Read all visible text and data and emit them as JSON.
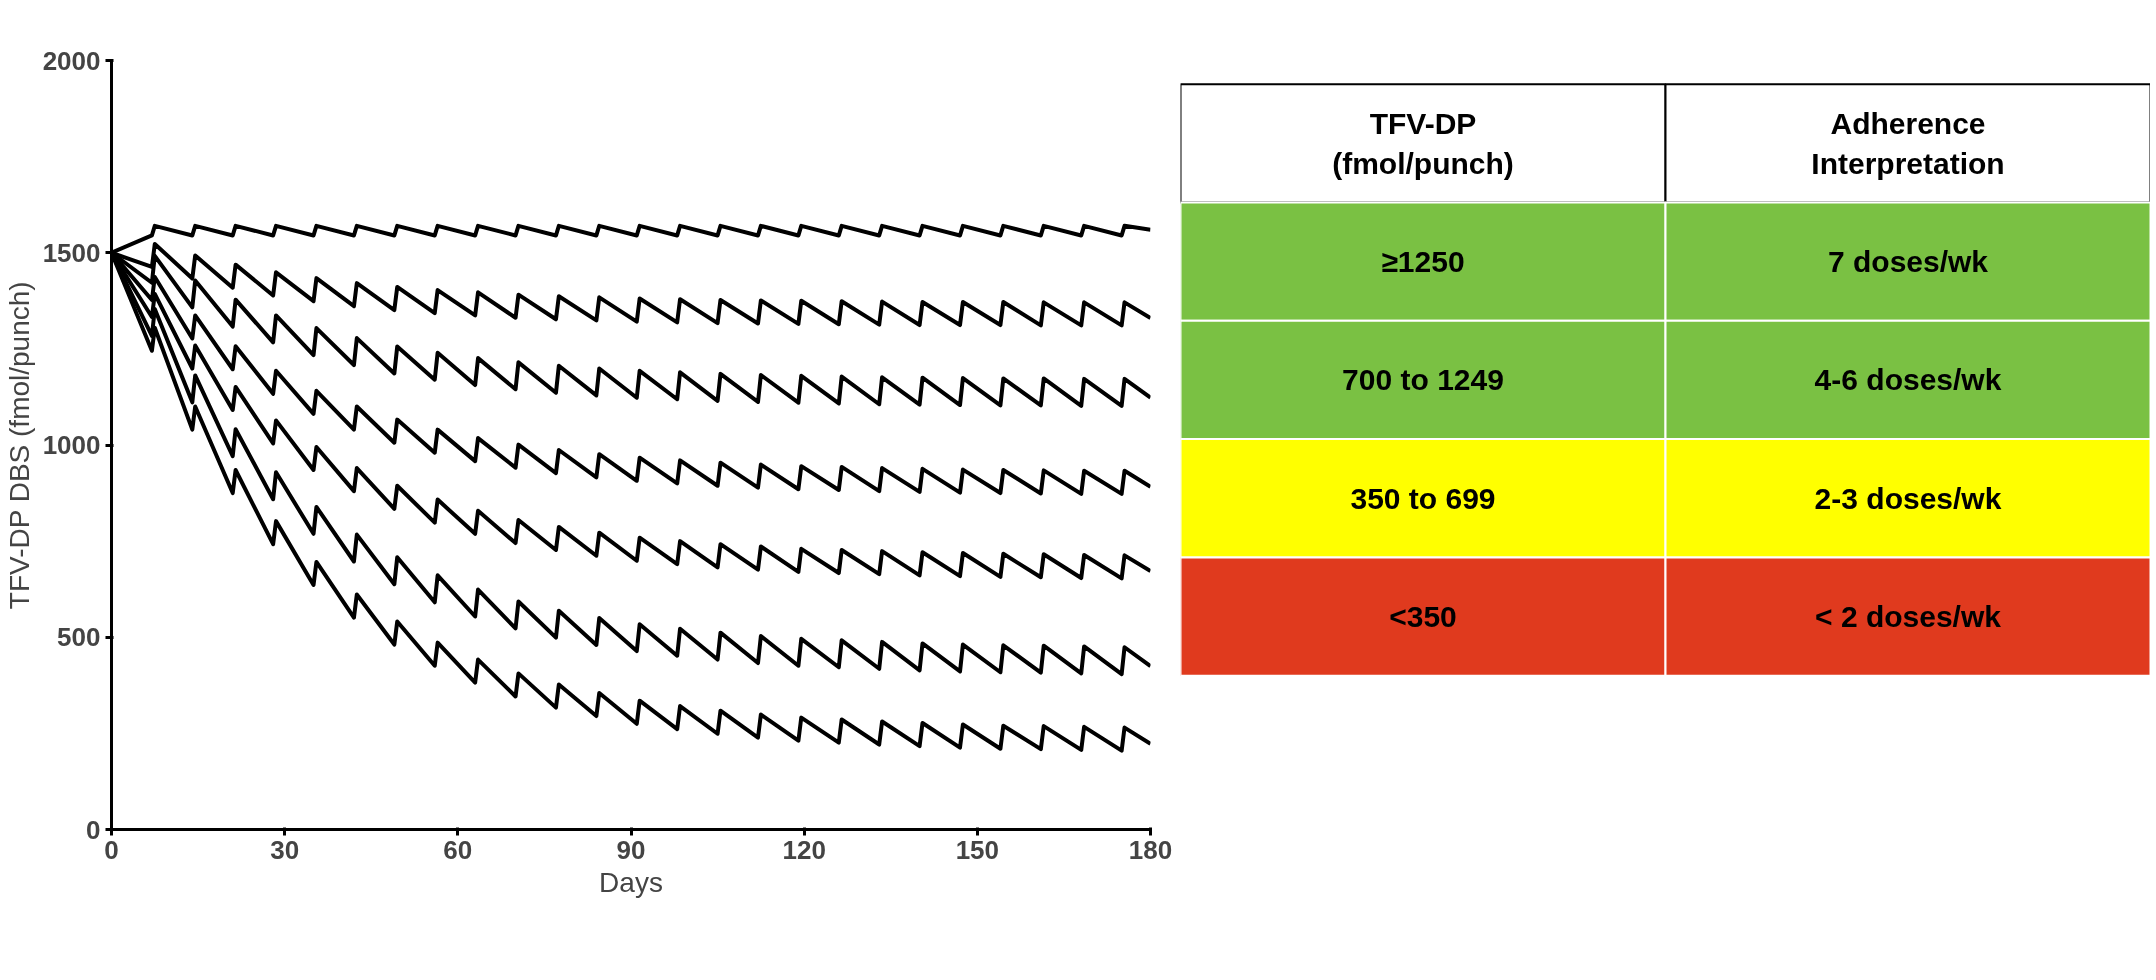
{
  "chart_data": [
    {
      "type": "line",
      "xlabel": "Days",
      "ylabel": "TFV-DP DBS (fmol/punch)",
      "xlim": [
        0,
        180
      ],
      "ylim": [
        0,
        2000
      ],
      "xticks": [
        0,
        30,
        60,
        90,
        120,
        150,
        180
      ],
      "yticks": [
        0,
        500,
        1000,
        1500,
        2000
      ],
      "grid": false,
      "marker": "none",
      "line_style": "solid",
      "x": [
        0,
        7,
        7.5,
        14,
        14.5,
        21,
        21.5,
        28,
        28.5,
        35,
        35.5,
        42,
        42.5,
        49,
        49.5,
        56,
        56.5,
        63,
        63.5,
        70,
        70.5,
        77,
        77.5,
        84,
        84.5,
        91,
        91.5,
        98,
        98.5,
        105,
        105.5,
        112,
        112.5,
        119,
        119.5,
        126,
        126.5,
        133,
        133.5,
        140,
        140.5,
        147,
        147.5,
        154,
        154.5,
        161,
        161.5,
        168,
        168.5,
        175,
        175.5,
        180
      ],
      "series": [
        {
          "color": "#000000",
          "values": [
            1500,
            1545,
            1570,
            1545,
            1570,
            1545,
            1570,
            1545,
            1570,
            1545,
            1570,
            1545,
            1570,
            1545,
            1570,
            1545,
            1570,
            1545,
            1570,
            1545,
            1570,
            1545,
            1570,
            1545,
            1570,
            1545,
            1570,
            1545,
            1570,
            1545,
            1570,
            1545,
            1570,
            1545,
            1570,
            1545,
            1570,
            1545,
            1570,
            1545,
            1570,
            1545,
            1570,
            1545,
            1570,
            1545,
            1570,
            1545,
            1570,
            1545,
            1570,
            1560
          ]
        },
        {
          "color": "#000000",
          "values": [
            1500,
            1463,
            1523,
            1433,
            1493,
            1409,
            1469,
            1389,
            1449,
            1374,
            1434,
            1361,
            1421,
            1351,
            1411,
            1343,
            1403,
            1337,
            1397,
            1331,
            1391,
            1327,
            1387,
            1324,
            1384,
            1321,
            1381,
            1319,
            1379,
            1317,
            1377,
            1316,
            1376,
            1315,
            1375,
            1314,
            1374,
            1313,
            1373,
            1312,
            1372,
            1312,
            1372,
            1312,
            1372,
            1311,
            1371,
            1311,
            1371,
            1311,
            1371,
            1330
          ]
        },
        {
          "color": "#000000",
          "values": [
            1500,
            1422,
            1492,
            1358,
            1428,
            1308,
            1378,
            1267,
            1337,
            1234,
            1304,
            1208,
            1278,
            1186,
            1256,
            1170,
            1240,
            1156,
            1226,
            1145,
            1215,
            1136,
            1206,
            1129,
            1199,
            1123,
            1193,
            1119,
            1189,
            1115,
            1185,
            1112,
            1182,
            1110,
            1180,
            1108,
            1178,
            1106,
            1176,
            1105,
            1175,
            1104,
            1174,
            1103,
            1173,
            1103,
            1173,
            1102,
            1172,
            1102,
            1172,
            1123
          ]
        },
        {
          "color": "#000000",
          "values": [
            1500,
            1377,
            1437,
            1277,
            1337,
            1197,
            1257,
            1133,
            1193,
            1081,
            1141,
            1040,
            1100,
            1006,
            1066,
            980,
            1040,
            958,
            1018,
            941,
            1001,
            927,
            987,
            916,
            976,
            907,
            967,
            900,
            960,
            894,
            954,
            889,
            949,
            885,
            945,
            883,
            943,
            880,
            940,
            878,
            938,
            876,
            936,
            875,
            935,
            874,
            934,
            873,
            933,
            873,
            933,
            891
          ]
        },
        {
          "color": "#000000",
          "values": [
            1500,
            1333,
            1393,
            1199,
            1259,
            1091,
            1151,
            1004,
            1064,
            935,
            995,
            880,
            940,
            834,
            894,
            798,
            858,
            769,
            829,
            745,
            805,
            727,
            787,
            712,
            772,
            699,
            759,
            690,
            750,
            682,
            742,
            676,
            736,
            670,
            730,
            667,
            727,
            664,
            724,
            661,
            721,
            659,
            719,
            657,
            717,
            656,
            716,
            654,
            714,
            653,
            713,
            672
          ]
        },
        {
          "color": "#000000",
          "values": [
            1500,
            1284,
            1354,
            1111,
            1181,
            971,
            1041,
            859,
            929,
            769,
            839,
            697,
            767,
            638,
            708,
            591,
            661,
            554,
            624,
            523,
            593,
            499,
            569,
            480,
            550,
            464,
            534,
            452,
            522,
            442,
            512,
            433,
            503,
            426,
            496,
            422,
            492,
            418,
            488,
            414,
            484,
            411,
            481,
            409,
            479,
            408,
            478,
            406,
            476,
            404,
            474,
            425
          ]
        },
        {
          "color": "#000000",
          "values": [
            1500,
            1245,
            1305,
            1040,
            1100,
            875,
            935,
            742,
            802,
            636,
            696,
            551,
            611,
            481,
            541,
            426,
            486,
            382,
            442,
            346,
            406,
            317,
            377,
            295,
            355,
            275,
            335,
            261,
            321,
            249,
            309,
            239,
            299,
            231,
            291,
            226,
            286,
            221,
            281,
            217,
            277,
            213,
            273,
            210,
            270,
            209,
            269,
            207,
            267,
            205,
            265,
            223
          ]
        }
      ]
    },
    {
      "type": "other",
      "colors": [
        "#ffffff",
        "#7ac143",
        "#7ac143",
        "#ffff00",
        "#e03a1e"
      ],
      "annotations": [
        "TFV-DP\n(fmol/punch)",
        "Adherence\nInterpretation",
        "≥1250",
        "7 doses/wk",
        "700 to 1249",
        "4-6 doses/wk",
        "350 to 699",
        "2-3 doses/wk",
        "<350",
        "< 2 doses/wk"
      ]
    }
  ]
}
